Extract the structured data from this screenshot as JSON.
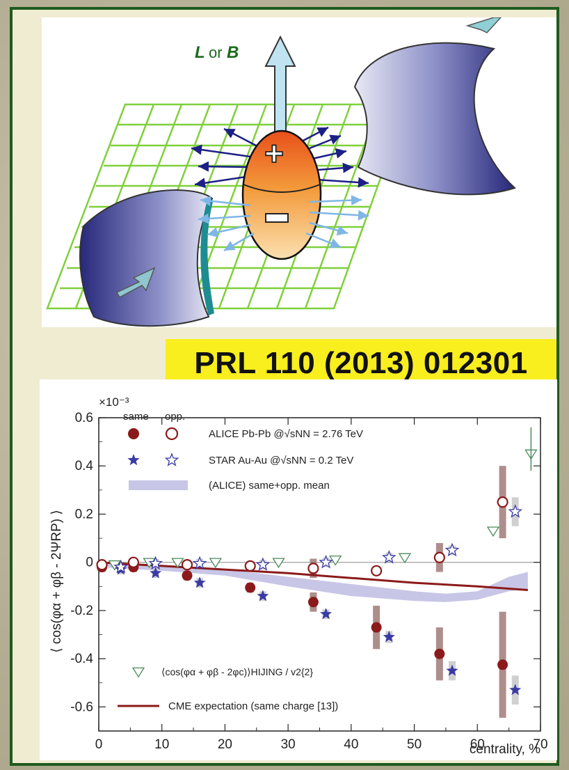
{
  "diagram": {
    "field_label_L": "L",
    "field_label_or": "or",
    "field_label_B": "B",
    "plus_sign": "+",
    "minus_sign": "−"
  },
  "reference": "PRL 110 (2013) 012301",
  "chart_data": {
    "type": "scatter",
    "ylabel": "⟨ cos(φα + φβ - 2ΨRP) ⟩",
    "yscale_label": "×10⁻³",
    "xlabel": "centrality, %",
    "xlim": [
      0,
      70
    ],
    "ylim": [
      -0.7,
      0.6
    ],
    "xticks": [
      0,
      10,
      20,
      30,
      40,
      50,
      60,
      70
    ],
    "yticks": [
      -0.6,
      -0.4,
      -0.2,
      0,
      0.2,
      0.4,
      0.6
    ],
    "ytick_labels": [
      "-0.6",
      "-0.4",
      "-0.2",
      "0",
      "0.2",
      "0.4",
      "0.6"
    ],
    "legend": {
      "col_same": "same",
      "col_opp": "opp.",
      "alice": "ALICE Pb-Pb @√sNN = 2.76 TeV",
      "star": "STAR Au-Au @√sNN = 0.2 TeV",
      "mean": "(ALICE) same+opp. mean",
      "hijing": "⟨cos(φα + φβ - 2φc)⟩HIJING / v2{2}",
      "cme": "CME expectation (same charge [13])"
    },
    "colors": {
      "alice": "#8b1a1a",
      "star": "#3a3aa6",
      "band": "#c8c6e6",
      "hijing": "#4a8a5a",
      "cme": "#8b1a1a",
      "syst_alice": "#a07a78",
      "syst_star": "#c8c8c8"
    },
    "series": [
      {
        "name": "ALICE same",
        "x": [
          0.5,
          5.5,
          14,
          24,
          34,
          44,
          54,
          64
        ],
        "y": [
          -0.02,
          -0.02,
          -0.055,
          -0.105,
          -0.165,
          -0.27,
          -0.38,
          -0.425
        ],
        "syst": [
          0.02,
          0.02,
          0.02,
          0.02,
          0.04,
          0.09,
          0.11,
          0.22
        ]
      },
      {
        "name": "ALICE opp.",
        "x": [
          0.5,
          5.5,
          14,
          24,
          34,
          44,
          54,
          64
        ],
        "y": [
          -0.01,
          0.0,
          -0.01,
          -0.015,
          -0.025,
          -0.035,
          0.02,
          0.25
        ],
        "syst": [
          0.02,
          0.02,
          0.02,
          0.02,
          0.04,
          0.02,
          0.06,
          0.15
        ]
      },
      {
        "name": "STAR same",
        "x": [
          3.5,
          9,
          16,
          26,
          36,
          46,
          56,
          66
        ],
        "y": [
          -0.03,
          -0.045,
          -0.085,
          -0.14,
          -0.215,
          -0.31,
          -0.45,
          -0.53
        ],
        "syst": [
          0.02,
          0.02,
          0.02,
          0.02,
          0.02,
          0.025,
          0.04,
          0.06
        ]
      },
      {
        "name": "STAR opp.",
        "x": [
          3.5,
          9,
          16,
          26,
          36,
          46,
          56,
          66
        ],
        "y": [
          -0.02,
          -0.005,
          -0.005,
          -0.01,
          0.0,
          0.02,
          0.05,
          0.21
        ],
        "syst": [
          0.02,
          0.02,
          0.02,
          0.02,
          0.02,
          0.02,
          0.02,
          0.06
        ]
      },
      {
        "name": "HIJING",
        "x": [
          2.5,
          8,
          12.5,
          18.5,
          28.5,
          37.5,
          48.5,
          62.5,
          68.5
        ],
        "y": [
          -0.01,
          0.0,
          0.0,
          0.0,
          0.0,
          0.01,
          0.02,
          0.13,
          0.45
        ]
      },
      {
        "name": "CME expectation",
        "x": [
          0,
          10,
          20,
          30,
          40,
          50,
          60,
          68
        ],
        "y": [
          0.0,
          -0.015,
          -0.03,
          -0.045,
          -0.065,
          -0.085,
          -0.1,
          -0.115
        ]
      },
      {
        "name": "same+opp. mean band",
        "x": [
          0,
          10,
          20,
          30,
          40,
          50,
          55,
          60,
          65,
          68
        ],
        "y_hi": [
          0.0,
          -0.01,
          -0.03,
          -0.06,
          -0.09,
          -0.12,
          -0.13,
          -0.12,
          -0.06,
          -0.04
        ],
        "y_lo": [
          -0.02,
          -0.035,
          -0.055,
          -0.1,
          -0.14,
          -0.16,
          -0.165,
          -0.155,
          -0.12,
          -0.11
        ]
      }
    ]
  }
}
